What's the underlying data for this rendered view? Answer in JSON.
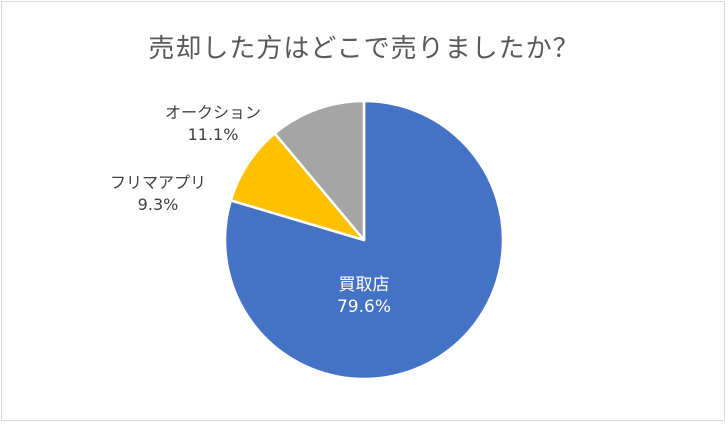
{
  "chart_data": {
    "type": "pie",
    "title": "売却した方はどこで売りましたか？",
    "slices": [
      {
        "name": "買取店",
        "value": 79.6,
        "label": "79.6%",
        "color": "#4472c4"
      },
      {
        "name": "フリマアプリ",
        "value": 9.3,
        "label": "9.3%",
        "color": "#ffc000"
      },
      {
        "name": "オークション",
        "value": 11.1,
        "label": "11.1%",
        "color": "#a5a5a5"
      }
    ],
    "start_angle_deg": 0,
    "direction": "clockwise",
    "legend": "none"
  }
}
